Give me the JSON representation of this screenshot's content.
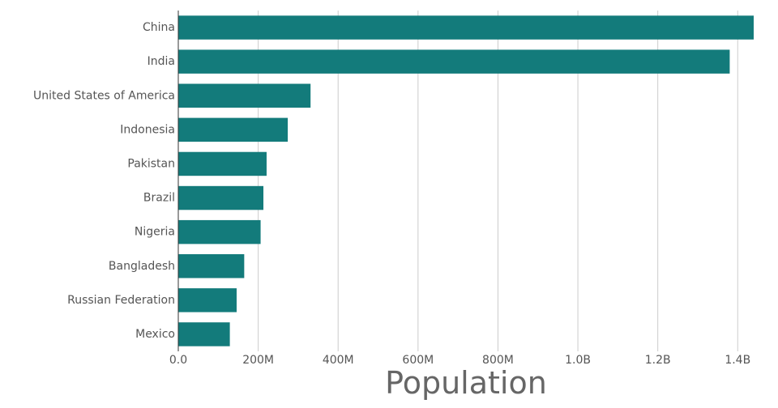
{
  "chart_data": {
    "type": "bar",
    "orientation": "horizontal",
    "categories": [
      "China",
      "India",
      "United States of America",
      "Indonesia",
      "Pakistan",
      "Brazil",
      "Nigeria",
      "Bangladesh",
      "Russian Federation",
      "Mexico"
    ],
    "values": [
      1440000000,
      1380000000,
      331000000,
      274000000,
      221000000,
      213000000,
      206000000,
      165000000,
      146000000,
      129000000
    ],
    "xlabel": "Population",
    "ylabel": "",
    "xlim": [
      0,
      1440000000
    ],
    "xticks": [
      0,
      200000000,
      400000000,
      600000000,
      800000000,
      1000000000,
      1200000000,
      1400000000
    ],
    "xtick_labels": [
      "0.0",
      "200M",
      "400M",
      "600M",
      "800M",
      "1.0B",
      "1.2B",
      "1.4B"
    ],
    "grid": true,
    "legend": "none",
    "colors": {
      "bar": "#137b7b",
      "grid": "#cccccc",
      "axis_line": "#333333",
      "text": "#555555",
      "title_text": "#666666"
    }
  }
}
